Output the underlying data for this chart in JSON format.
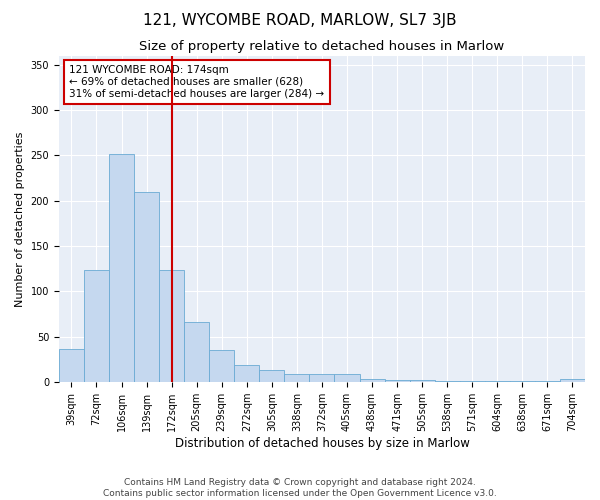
{
  "title": "121, WYCOMBE ROAD, MARLOW, SL7 3JB",
  "subtitle": "Size of property relative to detached houses in Marlow",
  "xlabel": "Distribution of detached houses by size in Marlow",
  "ylabel": "Number of detached properties",
  "categories": [
    "39sqm",
    "72sqm",
    "106sqm",
    "139sqm",
    "172sqm",
    "205sqm",
    "239sqm",
    "272sqm",
    "305sqm",
    "338sqm",
    "372sqm",
    "405sqm",
    "438sqm",
    "471sqm",
    "505sqm",
    "538sqm",
    "571sqm",
    "604sqm",
    "638sqm",
    "671sqm",
    "704sqm"
  ],
  "values": [
    37,
    124,
    252,
    210,
    124,
    66,
    35,
    19,
    13,
    9,
    9,
    9,
    4,
    2,
    2,
    1,
    1,
    1,
    1,
    1,
    4
  ],
  "bar_color": "#c5d8ef",
  "bar_edge_color": "#6aaad4",
  "vline_x_index": 4,
  "vline_color": "#cc0000",
  "annotation_text": "121 WYCOMBE ROAD: 174sqm\n← 69% of detached houses are smaller (628)\n31% of semi-detached houses are larger (284) →",
  "annotation_box_color": "#ffffff",
  "annotation_box_edge_color": "#cc0000",
  "ylim": [
    0,
    360
  ],
  "yticks": [
    0,
    50,
    100,
    150,
    200,
    250,
    300,
    350
  ],
  "bg_color": "#e8eef7",
  "footer_text": "Contains HM Land Registry data © Crown copyright and database right 2024.\nContains public sector information licensed under the Open Government Licence v3.0.",
  "title_fontsize": 11,
  "subtitle_fontsize": 9.5,
  "xlabel_fontsize": 8.5,
  "ylabel_fontsize": 8,
  "tick_fontsize": 7,
  "footer_fontsize": 6.5,
  "annot_fontsize": 7.5
}
